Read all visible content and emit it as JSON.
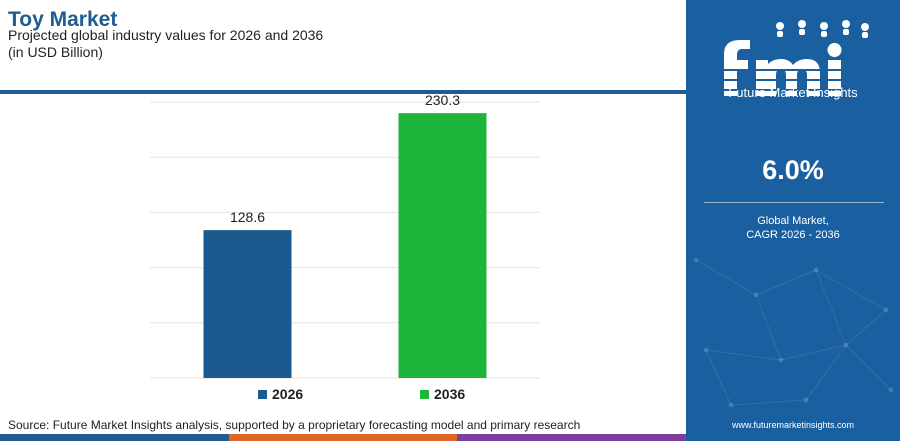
{
  "header": {
    "title": "Toy Market",
    "subtitle_line1": "Projected global industry values for 2026 and 2036",
    "subtitle_line2": "(in USD Billion)"
  },
  "source": "Source: Future Market Insights analysis, supported by a proprietary forecasting model and primary research",
  "panel": {
    "logo_text": "Future Market Insights",
    "cagr_value": "6.0%",
    "cagr_label_line1": "Global Market,",
    "cagr_label_line2": "CAGR 2026 - 2036",
    "url": "www.futuremarketinsights.com"
  },
  "colors": {
    "brand_blue": "#1f5c8f",
    "panel_blue": "#1a60a0",
    "bar_2026": "#1b5a8e",
    "bar_2036": "#1db63a",
    "bottom_bar": [
      "#1f5c8f",
      "#e0662c",
      "#7b3fa0"
    ]
  },
  "chart_data": {
    "type": "bar",
    "categories": [
      "2026",
      "2036"
    ],
    "values": [
      128.6,
      230.3
    ],
    "value_labels": [
      "128.6",
      "230.3"
    ],
    "ylim": [
      0,
      240
    ],
    "grid": true,
    "legend": "bottom-center",
    "legend_entries": [
      "2026",
      "2036"
    ],
    "xlabel": "",
    "ylabel": ""
  }
}
